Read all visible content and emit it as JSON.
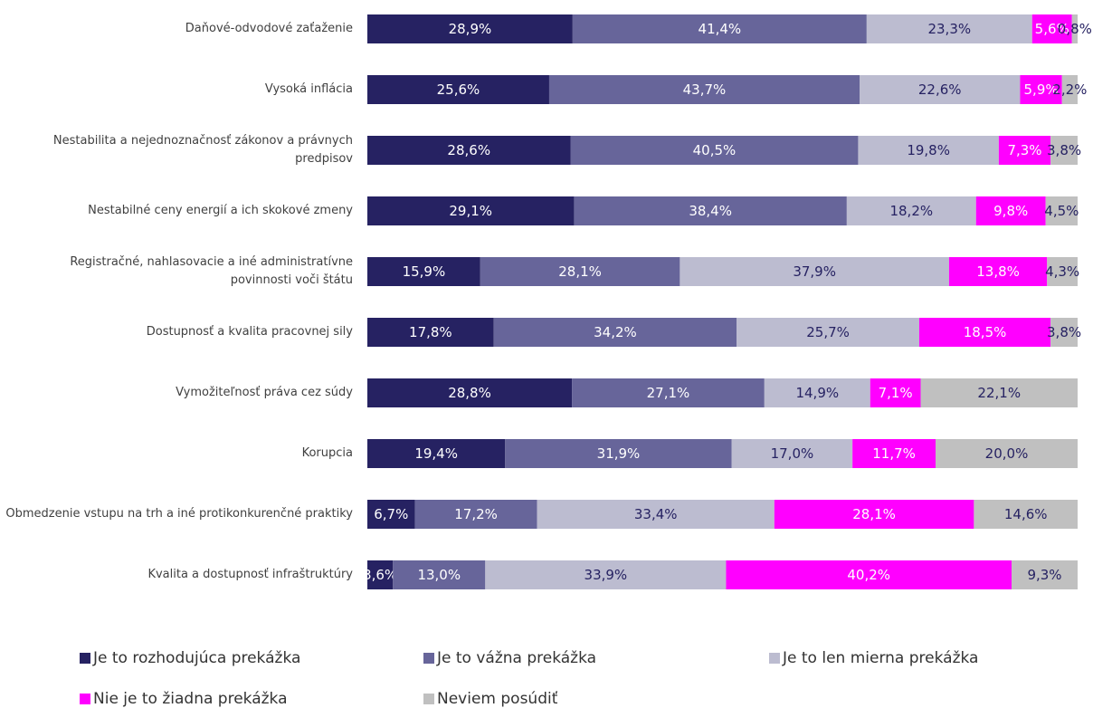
{
  "chart_data": {
    "type": "stacked-bar-horizontal",
    "categories": [
      "Daňové-odvodové zaťaženie",
      "Vysoká inflácia",
      "Nestabilita a nejednoznačnosť zákonov a právnych predpisov",
      "Nestabilné ceny energií a ich skokové zmeny",
      "Registračné, nahlasovacie a iné administratívne povinnosti voči štátu",
      "Dostupnosť a kvalita pracovnej sily",
      "Vymožiteľnosť práva cez súdy",
      "Korupcia",
      "Obmedzenie vstupu na trh a iné protikonkurenčné praktiky",
      "Kvalita a dostupnosť infraštruktúry"
    ],
    "series": [
      {
        "name": "Je to rozhodujúca prekážka",
        "color": "#262262",
        "values": [
          28.9,
          25.6,
          28.6,
          29.1,
          15.9,
          17.8,
          28.8,
          19.4,
          6.7,
          3.6
        ],
        "value_labels": [
          "28,9%",
          "25,6%",
          "28,6%",
          "29,1%",
          "15,9%",
          "17,8%",
          "28,8%",
          "19,4%",
          "6,7%",
          "3,6%"
        ]
      },
      {
        "name": "Je to vážna prekážka",
        "color": "#67659a",
        "values": [
          41.4,
          43.7,
          40.5,
          38.4,
          28.1,
          34.2,
          27.1,
          31.9,
          17.2,
          13.0
        ],
        "value_labels": [
          "41,4%",
          "43,7%",
          "40,5%",
          "38,4%",
          "28,1%",
          "34,2%",
          "27,1%",
          "31,9%",
          "17,2%",
          "13,0%"
        ]
      },
      {
        "name": "Je to len mierna prekážka",
        "color": "#bcbcd0",
        "values": [
          23.3,
          22.6,
          19.8,
          18.2,
          37.9,
          25.7,
          14.9,
          17.0,
          33.4,
          33.9
        ],
        "value_labels": [
          "23,3%",
          "22,6%",
          "19,8%",
          "18,2%",
          "37,9%",
          "25,7%",
          "14,9%",
          "17,0%",
          "33,4%",
          "33,9%"
        ]
      },
      {
        "name": "Nie je to žiadna prekážka",
        "color": "#ff00ff",
        "values": [
          5.6,
          5.9,
          7.3,
          9.8,
          13.8,
          18.5,
          7.1,
          11.7,
          28.1,
          40.2
        ],
        "value_labels": [
          "5,6%",
          "5,9%",
          "7,3%",
          "9,8%",
          "13,8%",
          "18,5%",
          "7,1%",
          "11,7%",
          "28,1%",
          "40,2%"
        ]
      },
      {
        "name": "Neviem posúdiť",
        "color": "#c0c0c0",
        "values": [
          0.8,
          2.2,
          3.8,
          4.5,
          4.3,
          3.8,
          22.1,
          20.0,
          14.6,
          9.3
        ],
        "value_labels": [
          "0,8%",
          "2,2%",
          "3,8%",
          "4,5%",
          "4,3%",
          "3,8%",
          "22,1%",
          "20,0%",
          "14,6%",
          "9,3%"
        ]
      }
    ]
  }
}
